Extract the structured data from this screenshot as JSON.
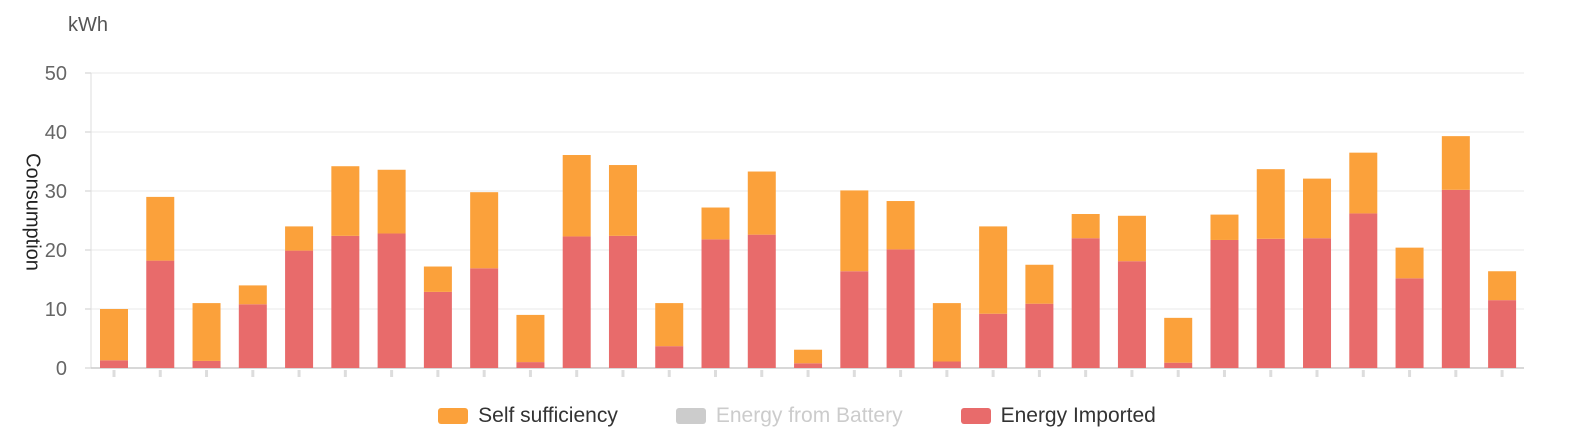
{
  "chart_data": {
    "type": "bar",
    "stacked": true,
    "unit": "kWh",
    "ylabel": "Consumption",
    "xlabel": "",
    "ylim": [
      0,
      50
    ],
    "yticks": [
      0,
      10,
      20,
      30,
      40,
      50
    ],
    "grid": true,
    "legend_position": "bottom-center",
    "series": [
      {
        "name": "Energy Imported",
        "color": "#e86b6b",
        "active": true,
        "values": [
          1.3,
          18.2,
          1.2,
          10.8,
          19.9,
          22.4,
          22.8,
          12.9,
          16.9,
          1.0,
          22.3,
          22.4,
          3.7,
          21.8,
          22.6,
          0.8,
          16.4,
          20.1,
          1.1,
          9.2,
          10.9,
          22.0,
          18.1,
          0.9,
          21.7,
          21.9,
          22.0,
          26.2,
          15.2,
          30.2,
          11.5
        ]
      },
      {
        "name": "Energy from Battery",
        "color": "#cccccc",
        "active": false,
        "values": [
          0,
          0,
          0,
          0,
          0,
          0,
          0,
          0,
          0,
          0,
          0,
          0,
          0,
          0,
          0,
          0,
          0,
          0,
          0,
          0,
          0,
          0,
          0,
          0,
          0,
          0,
          0,
          0,
          0,
          0,
          0
        ]
      },
      {
        "name": "Self sufficiency",
        "color": "#fba13b",
        "active": true,
        "values": [
          8.7,
          10.8,
          9.8,
          3.2,
          4.1,
          11.8,
          10.8,
          4.3,
          12.9,
          8.0,
          13.8,
          12.0,
          7.3,
          5.4,
          10.7,
          2.3,
          13.7,
          8.2,
          9.9,
          14.8,
          6.6,
          4.1,
          7.7,
          7.6,
          4.3,
          11.8,
          10.1,
          10.3,
          5.2,
          9.1,
          4.9
        ]
      }
    ],
    "legend_order": [
      "Self sufficiency",
      "Energy from Battery",
      "Energy Imported"
    ]
  }
}
